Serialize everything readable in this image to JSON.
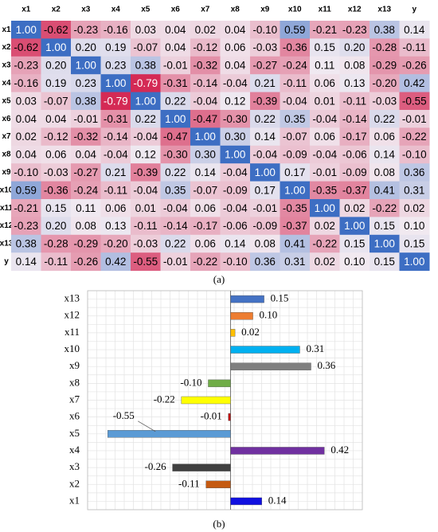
{
  "chart_data": [
    {
      "type": "heatmap",
      "caption": "(a)",
      "x_categories": [
        "x1",
        "x2",
        "x3",
        "x4",
        "x5",
        "x6",
        "x7",
        "x8",
        "x9",
        "x10",
        "x11",
        "x12",
        "x13",
        "y"
      ],
      "y_categories": [
        "x1",
        "x2",
        "x3",
        "x4",
        "x5",
        "x6",
        "x7",
        "x8",
        "x9",
        "x10",
        "x11",
        "x12",
        "x13",
        "y"
      ],
      "values": [
        [
          1,
          -0.62,
          -0.23,
          -0.16,
          0.03,
          0.04,
          0.02,
          0.04,
          -0.1,
          0.59,
          -0.21,
          -0.23,
          0.38,
          0.14
        ],
        [
          -0.62,
          1,
          0.2,
          0.19,
          -0.07,
          0.04,
          -0.12,
          0.06,
          -0.03,
          -0.36,
          0.15,
          0.2,
          -0.28,
          -0.11
        ],
        [
          -0.23,
          0.2,
          1,
          0.23,
          0.38,
          -0.01,
          -0.32,
          0.04,
          -0.27,
          -0.24,
          0.11,
          0.08,
          -0.29,
          -0.26
        ],
        [
          -0.16,
          0.19,
          0.23,
          1,
          -0.79,
          -0.31,
          -0.14,
          -0.04,
          0.21,
          -0.11,
          0.06,
          0.13,
          -0.2,
          0.42
        ],
        [
          0.03,
          -0.07,
          0.38,
          -0.79,
          1,
          0.22,
          -0.04,
          0.12,
          -0.39,
          -0.04,
          0.01,
          -0.11,
          -0.03,
          -0.55
        ],
        [
          0.04,
          0.04,
          -0.01,
          -0.31,
          0.22,
          1,
          -0.47,
          -0.3,
          0.22,
          0.35,
          -0.04,
          -0.14,
          0.22,
          -0.01
        ],
        [
          0.02,
          -0.12,
          -0.32,
          -0.14,
          -0.04,
          -0.47,
          1,
          0.3,
          0.14,
          -0.07,
          0.06,
          -0.17,
          0.06,
          -0.22
        ],
        [
          0.04,
          0.06,
          0.04,
          -0.04,
          0.12,
          -0.3,
          0.3,
          1,
          -0.04,
          -0.09,
          -0.04,
          -0.06,
          0.14,
          -0.1
        ],
        [
          -0.1,
          -0.03,
          -0.27,
          0.21,
          -0.39,
          0.22,
          0.14,
          -0.04,
          1,
          0.17,
          -0.01,
          -0.09,
          0.08,
          0.36
        ],
        [
          0.59,
          -0.36,
          -0.24,
          -0.11,
          -0.04,
          0.35,
          -0.07,
          -0.09,
          0.17,
          1,
          -0.35,
          -0.37,
          0.41,
          0.31
        ],
        [
          -0.21,
          0.15,
          0.11,
          0.06,
          0.01,
          -0.04,
          0.06,
          -0.04,
          -0.01,
          -0.35,
          1,
          0.02,
          -0.22,
          0.02
        ],
        [
          -0.23,
          0.2,
          0.08,
          0.13,
          -0.11,
          -0.14,
          -0.17,
          -0.06,
          -0.09,
          -0.37,
          0.02,
          1,
          0.15,
          0.1
        ],
        [
          0.38,
          -0.28,
          -0.29,
          -0.2,
          -0.03,
          0.22,
          0.06,
          0.14,
          0.08,
          0.41,
          -0.22,
          0.15,
          1,
          0.15
        ],
        [
          0.14,
          -0.11,
          -0.26,
          0.42,
          -0.55,
          -0.01,
          -0.22,
          -0.1,
          0.36,
          0.31,
          0.02,
          0.1,
          0.15,
          1
        ]
      ],
      "value_labels": [
        [
          "1.00",
          "-0.62",
          "-0.23",
          "-0.16",
          "0.03",
          "0.04",
          "0.02",
          "0.04",
          "-0.10",
          "0.59",
          "-0.21",
          "-0.23",
          "0.38",
          "0.14"
        ],
        [
          "-0.62",
          "1.00",
          "0.20",
          "0.19",
          "-0.07",
          "0.04",
          "-0.12",
          "0.06",
          "-0.03",
          "-0.36",
          "0.15",
          "0.20",
          "-0.28",
          "-0.11"
        ],
        [
          "-0.23",
          "0.20",
          "1.00",
          "0.23",
          "0.38",
          "-0.01",
          "-0.32",
          "0.04",
          "-0.27",
          "-0.24",
          "0.11",
          "0.08",
          "-0.29",
          "-0.26"
        ],
        [
          "-0.16",
          "0.19",
          "0.23",
          "1.00",
          "-0.79",
          "-0.31",
          "-0.14",
          "-0.04",
          "0.21",
          "-0.11",
          "0.06",
          "0.13",
          "-0.20",
          "0.42"
        ],
        [
          "0.03",
          "-0.07",
          "0.38",
          "-0.79",
          "1.00",
          "0.22",
          "-0.04",
          "0.12",
          "-0.39",
          "-0.04",
          "0.01",
          "-0.11",
          "-0.03",
          "-0.55"
        ],
        [
          "0.04",
          "0.04",
          "-0.01",
          "-0.31",
          "0.22",
          "1.00",
          "-0.47",
          "-0.30",
          "0.22",
          "0.35",
          "-0.04",
          "-0.14",
          "0.22",
          "-0.01"
        ],
        [
          "0.02",
          "-0.12",
          "-0.32",
          "-0.14",
          "-0.04",
          "-0.47",
          "1.00",
          "0.30",
          "0.14",
          "-0.07",
          "0.06",
          "-0.17",
          "0.06",
          "-0.22"
        ],
        [
          "0.04",
          "0.06",
          "0.04",
          "-0.04",
          "0.12",
          "-0.30",
          "0.30",
          "1.00",
          "-0.04",
          "-0.09",
          "-0.04",
          "-0.06",
          "0.14",
          "-0.10"
        ],
        [
          "-0.10",
          "-0.03",
          "-0.27",
          "0.21",
          "-0.39",
          "0.22",
          "0.14",
          "-0.04",
          "1.00",
          "0.17",
          "-0.01",
          "-0.09",
          "0.08",
          "0.36"
        ],
        [
          "0.59",
          "-0.36",
          "-0.24",
          "-0.11",
          "-0.04",
          "0.35",
          "-0.07",
          "-0.09",
          "0.17",
          "1.00",
          "-0.35",
          "-0.37",
          "0.41",
          "0.31"
        ],
        [
          "-0.21",
          "0.15",
          "0.11",
          "0.06",
          "0.01",
          "-0.04",
          "0.06",
          "-0.04",
          "-0.01",
          "-0.35",
          "1.00",
          "0.02",
          "-0.22",
          "0.02"
        ],
        [
          "-0.23",
          "0.20",
          "0.08",
          "0.13",
          "-0.11",
          "-0.14",
          "-0.17",
          "-0.06",
          "-0.09",
          "-0.37",
          "0.02",
          "1.00",
          "0.15",
          "0.10"
        ],
        [
          "0.38",
          "-0.28",
          "-0.29",
          "-0.20",
          "-0.03",
          "0.22",
          "0.06",
          "0.14",
          "0.08",
          "0.41",
          "-0.22",
          "0.15",
          "1.00",
          "0.15"
        ],
        [
          "0.14",
          "-0.11",
          "-0.26",
          "0.42",
          "-0.55",
          "-0.01",
          "-0.22",
          "-0.10",
          "0.36",
          "0.31",
          "0.02",
          "0.10",
          "0.15",
          "1.00"
        ]
      ],
      "colorscale": [
        "#d42a55",
        "#f1eaf1",
        "#3d6ec3"
      ],
      "vlim": [
        -0.79,
        1
      ]
    },
    {
      "type": "barh",
      "caption": "(b)",
      "categories": [
        "x1",
        "x2",
        "x3",
        "x4",
        "x5",
        "x6",
        "x7",
        "x8",
        "x9",
        "x10",
        "x11",
        "x12",
        "x13"
      ],
      "values": [
        0.14,
        -0.11,
        -0.26,
        0.42,
        -0.55,
        -0.01,
        -0.22,
        -0.1,
        0.36,
        0.31,
        0.02,
        0.1,
        0.15
      ],
      "value_labels": [
        "0.14",
        "-0.11",
        "-0.26",
        "0.42",
        "-0.55",
        "-0.01",
        "-0.22",
        "-0.10",
        "0.36",
        "0.31",
        "0.02",
        "0.10",
        "0.15"
      ],
      "colors": [
        "#1010e0",
        "#c55a11",
        "#404040",
        "#7030a0",
        "#5b9bd5",
        "#c00000",
        "#ffff00",
        "#70ad47",
        "#7f7f7f",
        "#00b0f0",
        "#ffc000",
        "#ed7d31",
        "#4472c4"
      ],
      "xlim": [
        -0.64,
        0.59
      ],
      "grid": true
    }
  ]
}
